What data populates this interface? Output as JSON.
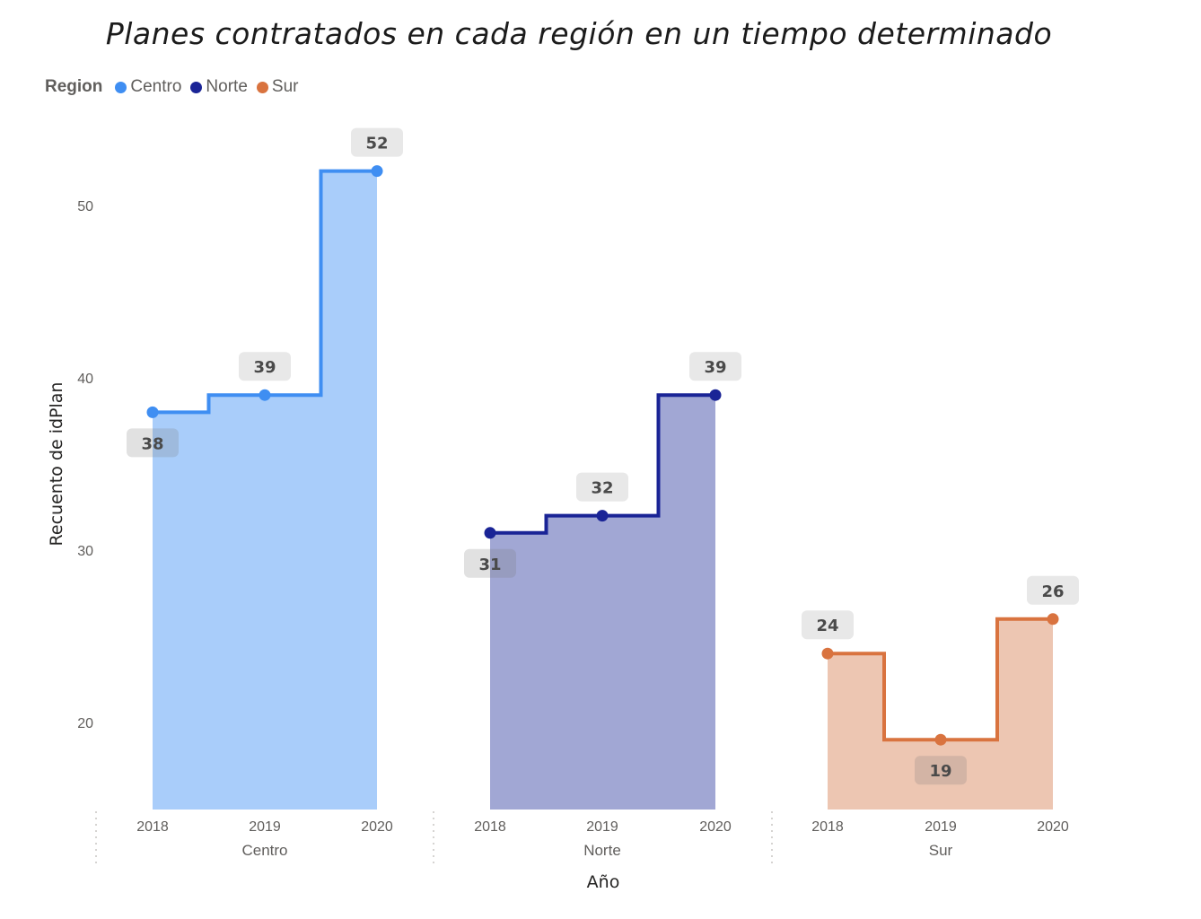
{
  "title": "Planes contratados en cada región en un tiempo determinado",
  "legend": {
    "title": "Region",
    "items": [
      {
        "label": "Centro",
        "color": "#3f8ef2"
      },
      {
        "label": "Norte",
        "color": "#1a2496"
      },
      {
        "label": "Sur",
        "color": "#d9733f"
      }
    ]
  },
  "chart_data": {
    "type": "area",
    "title": "Planes contratados en cada región en un tiempo determinado",
    "xlabel": "Año",
    "ylabel": "Recuento de idPlan",
    "ylim": [
      15,
      55
    ],
    "yticks": [
      "20",
      "30",
      "40",
      "50"
    ],
    "interpolation": "step",
    "legend_position": "top-left",
    "grid": false,
    "groups": [
      {
        "name": "Centro",
        "x": [
          "2018",
          "2019",
          "2020"
        ],
        "values": [
          38,
          39,
          52
        ],
        "line_color": "#3f8ef2",
        "fill_color": "#a9cdfa"
      },
      {
        "name": "Norte",
        "x": [
          "2018",
          "2019",
          "2020"
        ],
        "values": [
          31,
          32,
          39
        ],
        "line_color": "#1a2496",
        "fill_color": "#a1a7d4"
      },
      {
        "name": "Sur",
        "x": [
          "2018",
          "2019",
          "2020"
        ],
        "values": [
          24,
          19,
          26
        ],
        "line_color": "#d9733f",
        "fill_color": "#edc6b2"
      }
    ]
  }
}
